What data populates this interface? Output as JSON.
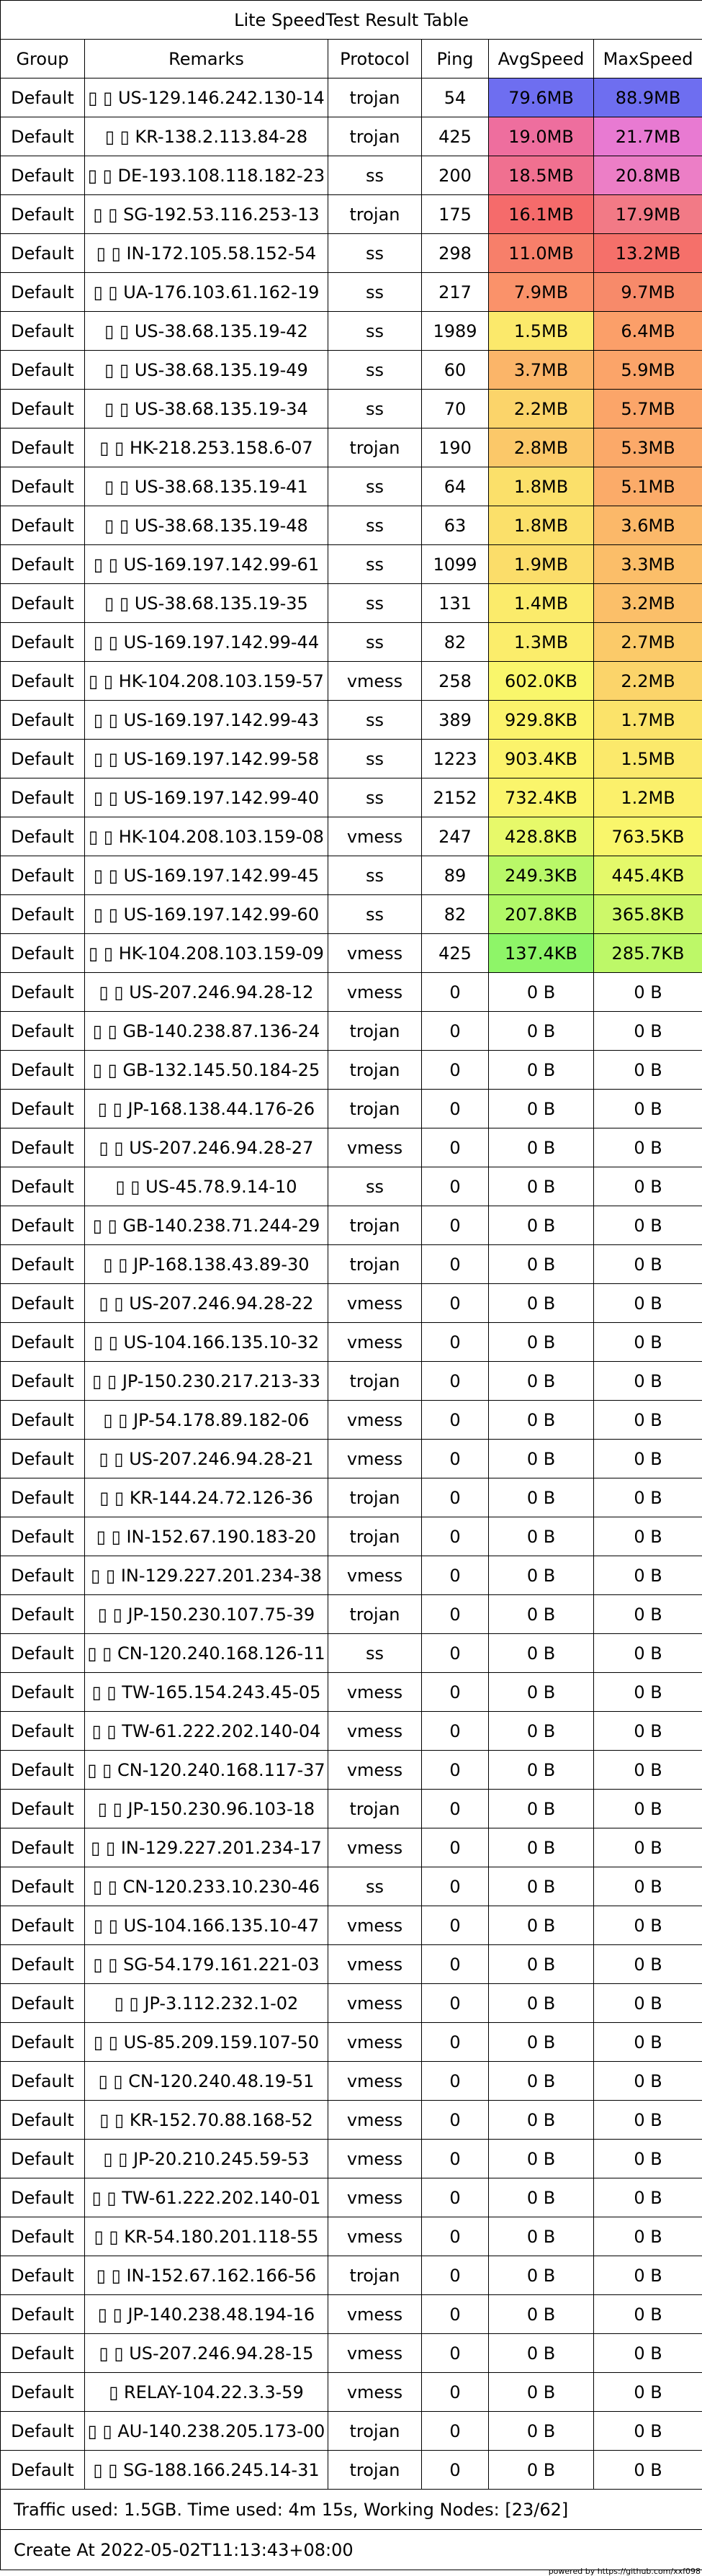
{
  "title": "Lite SpeedTest Result Table",
  "columns": [
    "Group",
    "Remarks",
    "Protocol",
    "Ping",
    "AvgSpeed",
    "MaxSpeed"
  ],
  "rows": [
    {
      "group": "Default",
      "remarks": "▯ ▯ US-129.146.242.130-14",
      "protocol": "trojan",
      "ping": "54",
      "avg": "79.6MB",
      "max": "88.9MB",
      "avg_color": "#6e6ef0",
      "max_color": "#6e6ef0"
    },
    {
      "group": "Default",
      "remarks": "▯ ▯ KR-138.2.113.84-28",
      "protocol": "trojan",
      "ping": "425",
      "avg": "19.0MB",
      "max": "21.7MB",
      "avg_color": "#ee6e9e",
      "max_color": "#e87ad2"
    },
    {
      "group": "Default",
      "remarks": "▯ ▯ DE-193.108.118.182-23",
      "protocol": "ss",
      "ping": "200",
      "avg": "18.5MB",
      "max": "20.8MB",
      "avg_color": "#f07090",
      "max_color": "#ec7ec6"
    },
    {
      "group": "Default",
      "remarks": "▯ ▯ SG-192.53.116.253-13",
      "protocol": "trojan",
      "ping": "175",
      "avg": "16.1MB",
      "max": "17.9MB",
      "avg_color": "#f56b6b",
      "max_color": "#f27a86"
    },
    {
      "group": "Default",
      "remarks": "▯ ▯ IN-172.105.58.152-54",
      "protocol": "ss",
      "ping": "298",
      "avg": "11.0MB",
      "max": "13.2MB",
      "avg_color": "#f77f6a",
      "max_color": "#f5706a"
    },
    {
      "group": "Default",
      "remarks": "▯ ▯ UA-176.103.61.162-19",
      "protocol": "ss",
      "ping": "217",
      "avg": "7.9MB",
      "max": "9.7MB",
      "avg_color": "#fa926a",
      "max_color": "#f78a6a"
    },
    {
      "group": "Default",
      "remarks": "▯ ▯ US-38.68.135.19-42",
      "protocol": "ss",
      "ping": "1989",
      "avg": "1.5MB",
      "max": "6.4MB",
      "avg_color": "#fbe96b",
      "max_color": "#fb9f69"
    },
    {
      "group": "Default",
      "remarks": "▯ ▯ US-38.68.135.19-49",
      "protocol": "ss",
      "ping": "60",
      "avg": "3.7MB",
      "max": "5.9MB",
      "avg_color": "#fbb569",
      "max_color": "#fba469"
    },
    {
      "group": "Default",
      "remarks": "▯ ▯ US-38.68.135.19-34",
      "protocol": "ss",
      "ping": "70",
      "avg": "2.2MB",
      "max": "5.7MB",
      "avg_color": "#fbd46a",
      "max_color": "#fba569"
    },
    {
      "group": "Default",
      "remarks": "▯ ▯ HK-218.253.158.6-07",
      "protocol": "trojan",
      "ping": "190",
      "avg": "2.8MB",
      "max": "5.3MB",
      "avg_color": "#fbc869",
      "max_color": "#fba969"
    },
    {
      "group": "Default",
      "remarks": "▯ ▯ US-38.68.135.19-41",
      "protocol": "ss",
      "ping": "64",
      "avg": "1.8MB",
      "max": "5.1MB",
      "avg_color": "#fbe06a",
      "max_color": "#fbab69"
    },
    {
      "group": "Default",
      "remarks": "▯ ▯ US-38.68.135.19-48",
      "protocol": "ss",
      "ping": "63",
      "avg": "1.8MB",
      "max": "3.6MB",
      "avg_color": "#fbe06a",
      "max_color": "#fbb869"
    },
    {
      "group": "Default",
      "remarks": "▯ ▯ US-169.197.142.99-61",
      "protocol": "ss",
      "ping": "1099",
      "avg": "1.9MB",
      "max": "3.3MB",
      "avg_color": "#fbdd6a",
      "max_color": "#fbbe69"
    },
    {
      "group": "Default",
      "remarks": "▯ ▯ US-38.68.135.19-35",
      "protocol": "ss",
      "ping": "131",
      "avg": "1.4MB",
      "max": "3.2MB",
      "avg_color": "#fbeb6b",
      "max_color": "#fbbf69"
    },
    {
      "group": "Default",
      "remarks": "▯ ▯ US-169.197.142.99-44",
      "protocol": "ss",
      "ping": "82",
      "avg": "1.3MB",
      "max": "2.7MB",
      "avg_color": "#fbed6b",
      "max_color": "#fbca69"
    },
    {
      "group": "Default",
      "remarks": "▯ ▯ HK-104.208.103.159-57",
      "protocol": "vmess",
      "ping": "258",
      "avg": "602.0KB",
      "max": "2.2MB",
      "avg_color": "#f9f66b",
      "max_color": "#fbd46a"
    },
    {
      "group": "Default",
      "remarks": "▯ ▯ US-169.197.142.99-43",
      "protocol": "ss",
      "ping": "389",
      "avg": "929.8KB",
      "max": "1.7MB",
      "avg_color": "#fbf36b",
      "max_color": "#fbe36a"
    },
    {
      "group": "Default",
      "remarks": "▯ ▯ US-169.197.142.99-58",
      "protocol": "ss",
      "ping": "1223",
      "avg": "903.4KB",
      "max": "1.5MB",
      "avg_color": "#fbf36b",
      "max_color": "#fbe96b"
    },
    {
      "group": "Default",
      "remarks": "▯ ▯ US-169.197.142.99-40",
      "protocol": "ss",
      "ping": "2152",
      "avg": "732.4KB",
      "max": "1.2MB",
      "avg_color": "#faf56b",
      "max_color": "#fbf06b"
    },
    {
      "group": "Default",
      "remarks": "▯ ▯ HK-104.208.103.159-08",
      "protocol": "vmess",
      "ping": "247",
      "avg": "428.8KB",
      "max": "763.5KB",
      "avg_color": "#e7f96a",
      "max_color": "#f9f66b"
    },
    {
      "group": "Default",
      "remarks": "▯ ▯ US-169.197.142.99-45",
      "protocol": "ss",
      "ping": "89",
      "avg": "249.3KB",
      "max": "445.4KB",
      "avg_color": "#b9f868",
      "max_color": "#e4f96a"
    },
    {
      "group": "Default",
      "remarks": "▯ ▯ US-169.197.142.99-60",
      "protocol": "ss",
      "ping": "82",
      "avg": "207.8KB",
      "max": "365.8KB",
      "avg_color": "#b2f868",
      "max_color": "#cdf869"
    },
    {
      "group": "Default",
      "remarks": "▯ ▯ HK-104.208.103.159-09",
      "protocol": "vmess",
      "ping": "425",
      "avg": "137.4KB",
      "max": "285.7KB",
      "avg_color": "#8ef568",
      "max_color": "#bdf868"
    },
    {
      "group": "Default",
      "remarks": "▯ ▯ US-207.246.94.28-12",
      "protocol": "vmess",
      "ping": "0",
      "avg": "0 B",
      "max": "0 B",
      "avg_color": "#ffffff",
      "max_color": "#ffffff"
    },
    {
      "group": "Default",
      "remarks": "▯ ▯ GB-140.238.87.136-24",
      "protocol": "trojan",
      "ping": "0",
      "avg": "0 B",
      "max": "0 B",
      "avg_color": "#ffffff",
      "max_color": "#ffffff"
    },
    {
      "group": "Default",
      "remarks": "▯ ▯ GB-132.145.50.184-25",
      "protocol": "trojan",
      "ping": "0",
      "avg": "0 B",
      "max": "0 B",
      "avg_color": "#ffffff",
      "max_color": "#ffffff"
    },
    {
      "group": "Default",
      "remarks": "▯ ▯ JP-168.138.44.176-26",
      "protocol": "trojan",
      "ping": "0",
      "avg": "0 B",
      "max": "0 B",
      "avg_color": "#ffffff",
      "max_color": "#ffffff"
    },
    {
      "group": "Default",
      "remarks": "▯ ▯ US-207.246.94.28-27",
      "protocol": "vmess",
      "ping": "0",
      "avg": "0 B",
      "max": "0 B",
      "avg_color": "#ffffff",
      "max_color": "#ffffff"
    },
    {
      "group": "Default",
      "remarks": "▯ ▯ US-45.78.9.14-10",
      "protocol": "ss",
      "ping": "0",
      "avg": "0 B",
      "max": "0 B",
      "avg_color": "#ffffff",
      "max_color": "#ffffff"
    },
    {
      "group": "Default",
      "remarks": "▯ ▯ GB-140.238.71.244-29",
      "protocol": "trojan",
      "ping": "0",
      "avg": "0 B",
      "max": "0 B",
      "avg_color": "#ffffff",
      "max_color": "#ffffff"
    },
    {
      "group": "Default",
      "remarks": "▯ ▯ JP-168.138.43.89-30",
      "protocol": "trojan",
      "ping": "0",
      "avg": "0 B",
      "max": "0 B",
      "avg_color": "#ffffff",
      "max_color": "#ffffff"
    },
    {
      "group": "Default",
      "remarks": "▯ ▯ US-207.246.94.28-22",
      "protocol": "vmess",
      "ping": "0",
      "avg": "0 B",
      "max": "0 B",
      "avg_color": "#ffffff",
      "max_color": "#ffffff"
    },
    {
      "group": "Default",
      "remarks": "▯ ▯ US-104.166.135.10-32",
      "protocol": "vmess",
      "ping": "0",
      "avg": "0 B",
      "max": "0 B",
      "avg_color": "#ffffff",
      "max_color": "#ffffff"
    },
    {
      "group": "Default",
      "remarks": "▯ ▯ JP-150.230.217.213-33",
      "protocol": "trojan",
      "ping": "0",
      "avg": "0 B",
      "max": "0 B",
      "avg_color": "#ffffff",
      "max_color": "#ffffff"
    },
    {
      "group": "Default",
      "remarks": "▯ ▯ JP-54.178.89.182-06",
      "protocol": "vmess",
      "ping": "0",
      "avg": "0 B",
      "max": "0 B",
      "avg_color": "#ffffff",
      "max_color": "#ffffff"
    },
    {
      "group": "Default",
      "remarks": "▯ ▯ US-207.246.94.28-21",
      "protocol": "vmess",
      "ping": "0",
      "avg": "0 B",
      "max": "0 B",
      "avg_color": "#ffffff",
      "max_color": "#ffffff"
    },
    {
      "group": "Default",
      "remarks": "▯ ▯ KR-144.24.72.126-36",
      "protocol": "trojan",
      "ping": "0",
      "avg": "0 B",
      "max": "0 B",
      "avg_color": "#ffffff",
      "max_color": "#ffffff"
    },
    {
      "group": "Default",
      "remarks": "▯ ▯ IN-152.67.190.183-20",
      "protocol": "trojan",
      "ping": "0",
      "avg": "0 B",
      "max": "0 B",
      "avg_color": "#ffffff",
      "max_color": "#ffffff"
    },
    {
      "group": "Default",
      "remarks": "▯ ▯ IN-129.227.201.234-38",
      "protocol": "vmess",
      "ping": "0",
      "avg": "0 B",
      "max": "0 B",
      "avg_color": "#ffffff",
      "max_color": "#ffffff"
    },
    {
      "group": "Default",
      "remarks": "▯ ▯ JP-150.230.107.75-39",
      "protocol": "trojan",
      "ping": "0",
      "avg": "0 B",
      "max": "0 B",
      "avg_color": "#ffffff",
      "max_color": "#ffffff"
    },
    {
      "group": "Default",
      "remarks": "▯ ▯ CN-120.240.168.126-11",
      "protocol": "ss",
      "ping": "0",
      "avg": "0 B",
      "max": "0 B",
      "avg_color": "#ffffff",
      "max_color": "#ffffff"
    },
    {
      "group": "Default",
      "remarks": "▯ ▯ TW-165.154.243.45-05",
      "protocol": "vmess",
      "ping": "0",
      "avg": "0 B",
      "max": "0 B",
      "avg_color": "#ffffff",
      "max_color": "#ffffff"
    },
    {
      "group": "Default",
      "remarks": "▯ ▯ TW-61.222.202.140-04",
      "protocol": "vmess",
      "ping": "0",
      "avg": "0 B",
      "max": "0 B",
      "avg_color": "#ffffff",
      "max_color": "#ffffff"
    },
    {
      "group": "Default",
      "remarks": "▯ ▯ CN-120.240.168.117-37",
      "protocol": "vmess",
      "ping": "0",
      "avg": "0 B",
      "max": "0 B",
      "avg_color": "#ffffff",
      "max_color": "#ffffff"
    },
    {
      "group": "Default",
      "remarks": "▯ ▯ JP-150.230.96.103-18",
      "protocol": "trojan",
      "ping": "0",
      "avg": "0 B",
      "max": "0 B",
      "avg_color": "#ffffff",
      "max_color": "#ffffff"
    },
    {
      "group": "Default",
      "remarks": "▯ ▯ IN-129.227.201.234-17",
      "protocol": "vmess",
      "ping": "0",
      "avg": "0 B",
      "max": "0 B",
      "avg_color": "#ffffff",
      "max_color": "#ffffff"
    },
    {
      "group": "Default",
      "remarks": "▯ ▯ CN-120.233.10.230-46",
      "protocol": "ss",
      "ping": "0",
      "avg": "0 B",
      "max": "0 B",
      "avg_color": "#ffffff",
      "max_color": "#ffffff"
    },
    {
      "group": "Default",
      "remarks": "▯ ▯ US-104.166.135.10-47",
      "protocol": "vmess",
      "ping": "0",
      "avg": "0 B",
      "max": "0 B",
      "avg_color": "#ffffff",
      "max_color": "#ffffff"
    },
    {
      "group": "Default",
      "remarks": "▯ ▯ SG-54.179.161.221-03",
      "protocol": "vmess",
      "ping": "0",
      "avg": "0 B",
      "max": "0 B",
      "avg_color": "#ffffff",
      "max_color": "#ffffff"
    },
    {
      "group": "Default",
      "remarks": "▯ ▯ JP-3.112.232.1-02",
      "protocol": "vmess",
      "ping": "0",
      "avg": "0 B",
      "max": "0 B",
      "avg_color": "#ffffff",
      "max_color": "#ffffff"
    },
    {
      "group": "Default",
      "remarks": "▯ ▯ US-85.209.159.107-50",
      "protocol": "vmess",
      "ping": "0",
      "avg": "0 B",
      "max": "0 B",
      "avg_color": "#ffffff",
      "max_color": "#ffffff"
    },
    {
      "group": "Default",
      "remarks": "▯ ▯ CN-120.240.48.19-51",
      "protocol": "vmess",
      "ping": "0",
      "avg": "0 B",
      "max": "0 B",
      "avg_color": "#ffffff",
      "max_color": "#ffffff"
    },
    {
      "group": "Default",
      "remarks": "▯ ▯ KR-152.70.88.168-52",
      "protocol": "vmess",
      "ping": "0",
      "avg": "0 B",
      "max": "0 B",
      "avg_color": "#ffffff",
      "max_color": "#ffffff"
    },
    {
      "group": "Default",
      "remarks": "▯ ▯ JP-20.210.245.59-53",
      "protocol": "vmess",
      "ping": "0",
      "avg": "0 B",
      "max": "0 B",
      "avg_color": "#ffffff",
      "max_color": "#ffffff"
    },
    {
      "group": "Default",
      "remarks": "▯ ▯ TW-61.222.202.140-01",
      "protocol": "vmess",
      "ping": "0",
      "avg": "0 B",
      "max": "0 B",
      "avg_color": "#ffffff",
      "max_color": "#ffffff"
    },
    {
      "group": "Default",
      "remarks": "▯ ▯ KR-54.180.201.118-55",
      "protocol": "vmess",
      "ping": "0",
      "avg": "0 B",
      "max": "0 B",
      "avg_color": "#ffffff",
      "max_color": "#ffffff"
    },
    {
      "group": "Default",
      "remarks": "▯ ▯ IN-152.67.162.166-56",
      "protocol": "trojan",
      "ping": "0",
      "avg": "0 B",
      "max": "0 B",
      "avg_color": "#ffffff",
      "max_color": "#ffffff"
    },
    {
      "group": "Default",
      "remarks": "▯ ▯ JP-140.238.48.194-16",
      "protocol": "vmess",
      "ping": "0",
      "avg": "0 B",
      "max": "0 B",
      "avg_color": "#ffffff",
      "max_color": "#ffffff"
    },
    {
      "group": "Default",
      "remarks": "▯ ▯ US-207.246.94.28-15",
      "protocol": "vmess",
      "ping": "0",
      "avg": "0 B",
      "max": "0 B",
      "avg_color": "#ffffff",
      "max_color": "#ffffff"
    },
    {
      "group": "Default",
      "remarks": "▯ RELAY-104.22.3.3-59",
      "protocol": "vmess",
      "ping": "0",
      "avg": "0 B",
      "max": "0 B",
      "avg_color": "#ffffff",
      "max_color": "#ffffff"
    },
    {
      "group": "Default",
      "remarks": "▯ ▯ AU-140.238.205.173-00",
      "protocol": "trojan",
      "ping": "0",
      "avg": "0 B",
      "max": "0 B",
      "avg_color": "#ffffff",
      "max_color": "#ffffff"
    },
    {
      "group": "Default",
      "remarks": "▯ ▯ SG-188.166.245.14-31",
      "protocol": "trojan",
      "ping": "0",
      "avg": "0 B",
      "max": "0 B",
      "avg_color": "#ffffff",
      "max_color": "#ffffff"
    }
  ],
  "footer": {
    "traffic": "Traffic used: 1.5GB. Time used: 4m 15s, Working Nodes: [23/62]",
    "created": "Create At 2022-05-02T11:13:43+08:00"
  },
  "credit": "powered by https://github.com/xxf098"
}
